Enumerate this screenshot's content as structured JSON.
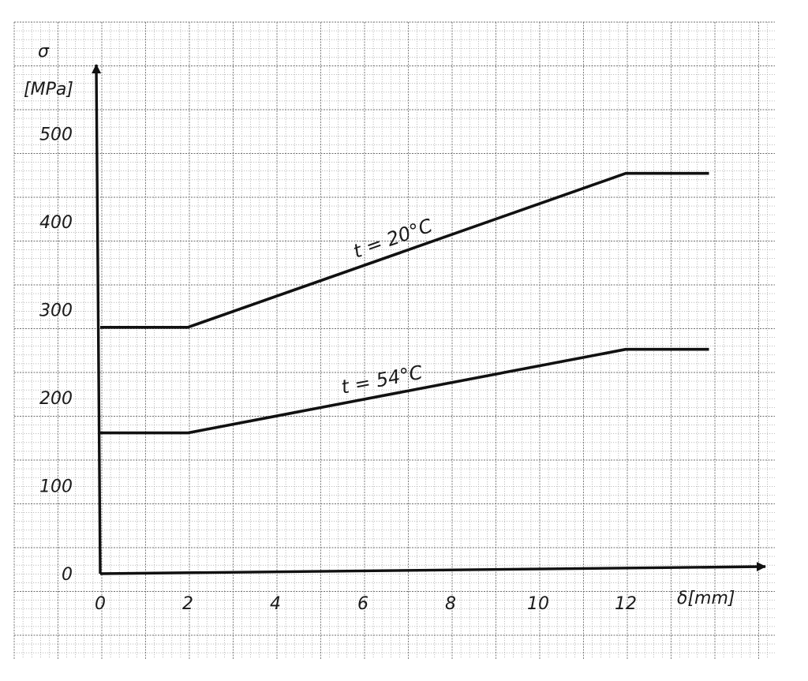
{
  "chart_data": {
    "type": "line",
    "ylabel_symbol": "σ",
    "ylabel_unit": "[MPa]",
    "xlabel": "δ[mm]",
    "xlim": [
      0,
      12
    ],
    "ylim": [
      0,
      500
    ],
    "x_ticks": [
      0,
      2,
      4,
      6,
      8,
      10,
      12
    ],
    "y_ticks": [
      0,
      100,
      200,
      300,
      400,
      500
    ],
    "grid": true,
    "colors": {
      "line": "#111111",
      "grid": "#8a8a8a",
      "background": "#ffffff"
    },
    "series": [
      {
        "name": "t = 20°C",
        "x": [
          0,
          2,
          12,
          13.9
        ],
        "y": [
          280,
          280,
          455,
          455
        ]
      },
      {
        "name": "t = 54°C",
        "x": [
          0,
          2,
          12,
          13.9
        ],
        "y": [
          160,
          160,
          255,
          255
        ]
      }
    ]
  }
}
